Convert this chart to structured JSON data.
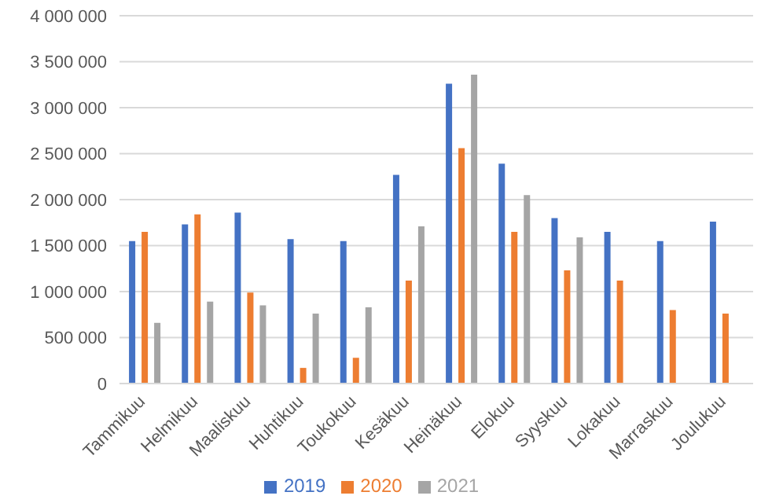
{
  "chart_data": {
    "type": "bar",
    "categories": [
      "Tammikuu",
      "Helmikuu",
      "Maaliskuu",
      "Huhtikuu",
      "Toukokuu",
      "Kesäkuu",
      "Heinäkuu",
      "Elokuu",
      "Syyskuu",
      "Lokakuu",
      "Marraskuu",
      "Joulukuu"
    ],
    "series": [
      {
        "name": "2019",
        "color": "#4472c4",
        "values": [
          1550000,
          1730000,
          1860000,
          1570000,
          1550000,
          2270000,
          3260000,
          2390000,
          1800000,
          1650000,
          1550000,
          1760000
        ]
      },
      {
        "name": "2020",
        "color": "#ed7d31",
        "values": [
          1650000,
          1840000,
          990000,
          170000,
          280000,
          1120000,
          2560000,
          1650000,
          1230000,
          1120000,
          800000,
          760000
        ]
      },
      {
        "name": "2021",
        "color": "#a5a5a5",
        "values": [
          660000,
          890000,
          850000,
          760000,
          830000,
          1710000,
          3360000,
          2050000,
          1590000,
          null,
          null,
          null
        ]
      }
    ],
    "ylim": [
      0,
      4000000
    ],
    "yticks": [
      0,
      500000,
      1000000,
      1500000,
      2000000,
      2500000,
      3000000,
      3500000,
      4000000
    ],
    "grid": "y",
    "legend": "bottom"
  }
}
